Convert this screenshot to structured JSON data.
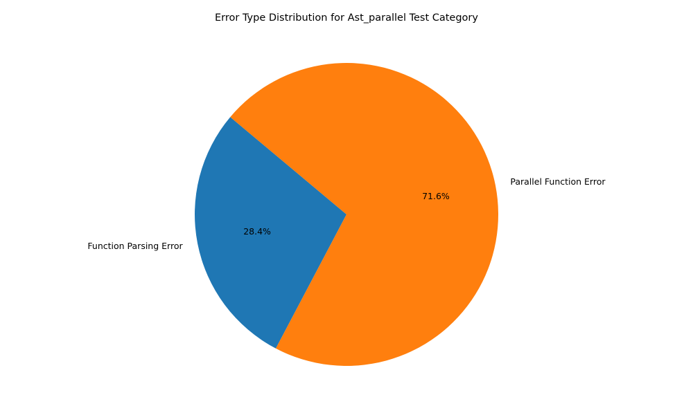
{
  "chart_data": {
    "type": "pie",
    "title": "Error Type Distribution for Ast_parallel Test Category",
    "start_angle_deg": 140,
    "direction": "counterclockwise",
    "slices": [
      {
        "label": "Function Parsing Error",
        "value": 28.4,
        "pct_label": "28.4%",
        "color": "#1f77b4"
      },
      {
        "label": "Parallel Function Error",
        "value": 71.6,
        "pct_label": "71.6%",
        "color": "#ff7f0e"
      }
    ]
  }
}
